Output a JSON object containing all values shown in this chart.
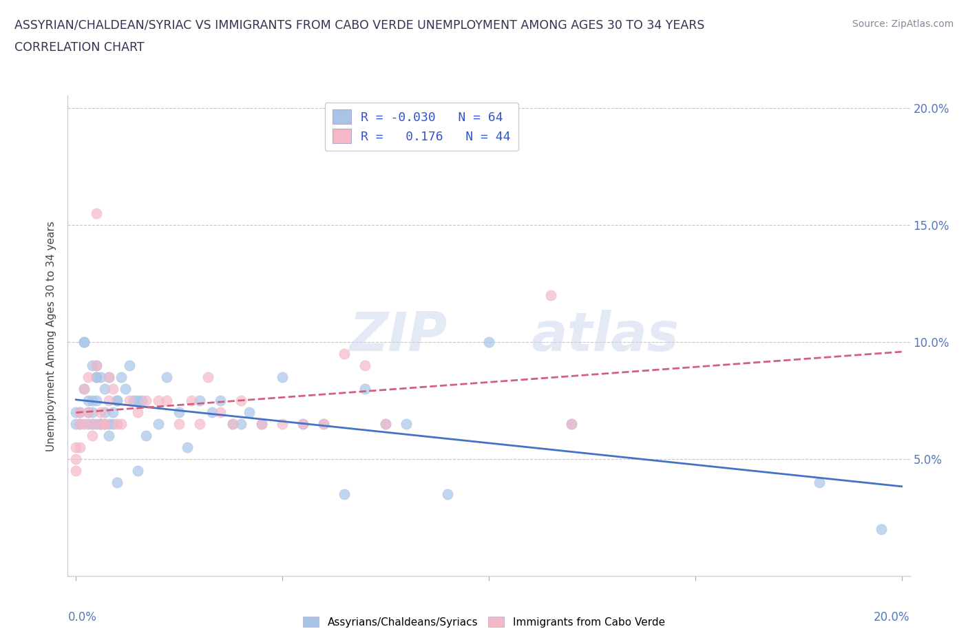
{
  "title_line1": "ASSYRIAN/CHALDEAN/SYRIAC VS IMMIGRANTS FROM CABO VERDE UNEMPLOYMENT AMONG AGES 30 TO 34 YEARS",
  "title_line2": "CORRELATION CHART",
  "source_text": "Source: ZipAtlas.com",
  "ylabel": "Unemployment Among Ages 30 to 34 years",
  "legend_R1": "-0.030",
  "legend_N1": "64",
  "legend_R2": "0.176",
  "legend_N2": "44",
  "blue_color": "#a8c4e8",
  "pink_color": "#f4b8c8",
  "blue_line_color": "#4472c4",
  "pink_line_color": "#d45f7a",
  "watermark_part1": "ZIP",
  "watermark_part2": "atlas",
  "blue_scatter_x": [
    0.0,
    0.0,
    0.001,
    0.001,
    0.002,
    0.002,
    0.002,
    0.003,
    0.003,
    0.003,
    0.004,
    0.004,
    0.004,
    0.004,
    0.005,
    0.005,
    0.005,
    0.005,
    0.005,
    0.006,
    0.006,
    0.006,
    0.007,
    0.007,
    0.007,
    0.008,
    0.008,
    0.008,
    0.009,
    0.009,
    0.01,
    0.01,
    0.01,
    0.011,
    0.012,
    0.013,
    0.014,
    0.015,
    0.015,
    0.016,
    0.017,
    0.02,
    0.022,
    0.025,
    0.027,
    0.03,
    0.033,
    0.035,
    0.038,
    0.04,
    0.042,
    0.045,
    0.05,
    0.055,
    0.06,
    0.065,
    0.07,
    0.075,
    0.08,
    0.09,
    0.1,
    0.12,
    0.18,
    0.195
  ],
  "blue_scatter_y": [
    0.07,
    0.065,
    0.07,
    0.065,
    0.1,
    0.1,
    0.08,
    0.075,
    0.07,
    0.065,
    0.065,
    0.07,
    0.075,
    0.09,
    0.085,
    0.065,
    0.09,
    0.085,
    0.075,
    0.065,
    0.085,
    0.065,
    0.08,
    0.07,
    0.065,
    0.085,
    0.065,
    0.06,
    0.07,
    0.065,
    0.04,
    0.075,
    0.075,
    0.085,
    0.08,
    0.09,
    0.075,
    0.075,
    0.045,
    0.075,
    0.06,
    0.065,
    0.085,
    0.07,
    0.055,
    0.075,
    0.07,
    0.075,
    0.065,
    0.065,
    0.07,
    0.065,
    0.085,
    0.065,
    0.065,
    0.035,
    0.08,
    0.065,
    0.065,
    0.035,
    0.1,
    0.065,
    0.04,
    0.02
  ],
  "pink_scatter_x": [
    0.0,
    0.0,
    0.0,
    0.001,
    0.001,
    0.001,
    0.002,
    0.002,
    0.003,
    0.003,
    0.004,
    0.004,
    0.005,
    0.005,
    0.006,
    0.006,
    0.007,
    0.007,
    0.008,
    0.008,
    0.009,
    0.01,
    0.011,
    0.013,
    0.015,
    0.017,
    0.02,
    0.022,
    0.025,
    0.028,
    0.03,
    0.032,
    0.035,
    0.038,
    0.04,
    0.045,
    0.05,
    0.055,
    0.06,
    0.065,
    0.07,
    0.075,
    0.115,
    0.12
  ],
  "pink_scatter_y": [
    0.055,
    0.05,
    0.045,
    0.07,
    0.065,
    0.055,
    0.065,
    0.08,
    0.085,
    0.07,
    0.06,
    0.065,
    0.09,
    0.155,
    0.07,
    0.065,
    0.065,
    0.065,
    0.085,
    0.075,
    0.08,
    0.065,
    0.065,
    0.075,
    0.07,
    0.075,
    0.075,
    0.075,
    0.065,
    0.075,
    0.065,
    0.085,
    0.07,
    0.065,
    0.075,
    0.065,
    0.065,
    0.065,
    0.065,
    0.095,
    0.09,
    0.065,
    0.12,
    0.065
  ]
}
